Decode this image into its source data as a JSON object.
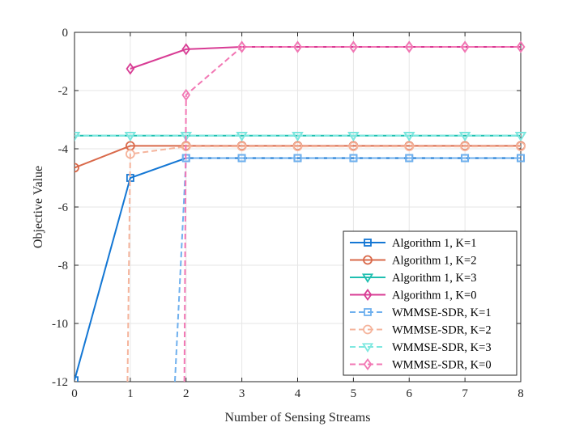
{
  "chart_data": {
    "type": "line",
    "title": "",
    "xlabel": "Number of Sensing Streams",
    "ylabel": "Objective Value",
    "xlim": [
      0,
      8
    ],
    "ylim": [
      -12,
      0
    ],
    "xticks": [
      0,
      1,
      2,
      3,
      4,
      5,
      6,
      7,
      8
    ],
    "yticks": [
      0,
      -2,
      -4,
      -6,
      -8,
      -10,
      -12
    ],
    "grid": true,
    "legend_position": "bottom-right",
    "series": [
      {
        "name": "Algorithm 1, K=1",
        "color": "#1477d4",
        "dash": "solid",
        "marker": "square",
        "x": [
          0,
          1,
          2,
          3,
          4,
          5,
          6,
          7,
          8
        ],
        "values": [
          -11.95,
          -5.0,
          -4.32,
          -4.32,
          -4.32,
          -4.32,
          -4.32,
          -4.32,
          -4.32
        ]
      },
      {
        "name": "Algorithm 1, K=2",
        "color": "#d9694a",
        "dash": "solid",
        "marker": "circle",
        "x": [
          0,
          1,
          2,
          3,
          4,
          5,
          6,
          7,
          8
        ],
        "values": [
          -4.65,
          -3.9,
          -3.9,
          -3.9,
          -3.9,
          -3.9,
          -3.9,
          -3.9,
          -3.9
        ]
      },
      {
        "name": "Algorithm 1, K=3",
        "color": "#1fbfb0",
        "dash": "solid",
        "marker": "triangle-down",
        "x": [
          0,
          1,
          2,
          3,
          4,
          5,
          6,
          7,
          8
        ],
        "values": [
          -3.55,
          -3.55,
          -3.55,
          -3.55,
          -3.55,
          -3.55,
          -3.55,
          -3.55,
          -3.55
        ]
      },
      {
        "name": "Algorithm 1, K=0",
        "color": "#d83c94",
        "dash": "solid",
        "marker": "diamond",
        "x": [
          1,
          2,
          3,
          4,
          5,
          6,
          7,
          8
        ],
        "values": [
          -1.25,
          -0.58,
          -0.5,
          -0.5,
          -0.5,
          -0.5,
          -0.5,
          -0.5
        ]
      },
      {
        "name": "WMMSE-SDR, K=1",
        "color": "#6fb0ee",
        "dash": "dashed",
        "marker": "square",
        "x": [
          1.8,
          2,
          3,
          4,
          5,
          6,
          7,
          8
        ],
        "values": [
          -12.0,
          -4.32,
          -4.32,
          -4.32,
          -4.32,
          -4.32,
          -4.32,
          -4.32
        ]
      },
      {
        "name": "WMMSE-SDR, K=2",
        "color": "#f5b49c",
        "dash": "dashed",
        "marker": "circle",
        "x": [
          0.95,
          1,
          2,
          3,
          4,
          5,
          6,
          7,
          8
        ],
        "values": [
          -12.0,
          -4.18,
          -3.92,
          -3.92,
          -3.92,
          -3.92,
          -3.92,
          -3.92,
          -3.92
        ]
      },
      {
        "name": "WMMSE-SDR, K=3",
        "color": "#7ee8e0",
        "dash": "dashed",
        "marker": "triangle-down",
        "x": [
          0,
          1,
          2,
          3,
          4,
          5,
          6,
          7,
          8
        ],
        "values": [
          -3.55,
          -3.55,
          -3.55,
          -3.55,
          -3.55,
          -3.55,
          -3.55,
          -3.55,
          -3.55
        ]
      },
      {
        "name": "WMMSE-SDR, K=0",
        "color": "#f277b4",
        "dash": "dashed",
        "marker": "diamond",
        "x": [
          1.97,
          2,
          3,
          4,
          5,
          6,
          7,
          8
        ],
        "values": [
          -12.0,
          -2.15,
          -0.5,
          -0.5,
          -0.5,
          -0.5,
          -0.5,
          -0.5
        ]
      }
    ]
  }
}
